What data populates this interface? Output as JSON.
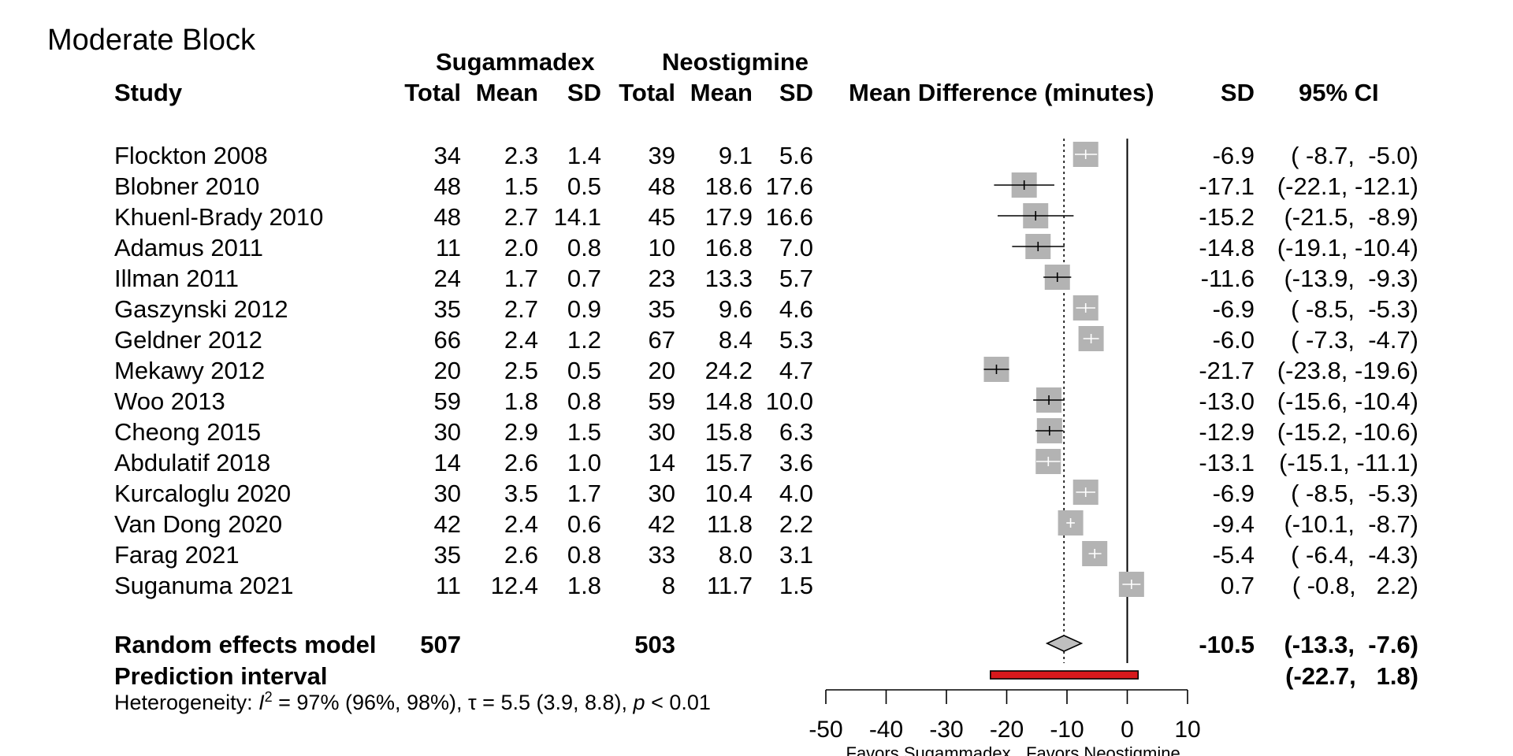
{
  "chart_data": {
    "type": "forest",
    "title": "Moderate Block",
    "group_headers": [
      "Sugammadex",
      "Neostigmine"
    ],
    "column_headers": [
      "Study",
      "Total",
      "Mean",
      "SD",
      "Total",
      "Mean",
      "SD",
      "Mean Difference (minutes)",
      "SD",
      "95% CI"
    ],
    "studies": [
      {
        "study": "Flockton 2008",
        "t1": "34",
        "m1": "2.3",
        "s1": "1.4",
        "t2": "39",
        "m2": "9.1",
        "s2": "5.6",
        "md_label": "-6.9",
        "ci_label": "( -8.7,  -5.0)",
        "md": -6.9,
        "lo": -8.7,
        "hi": -5.0
      },
      {
        "study": "Blobner 2010",
        "t1": "48",
        "m1": "1.5",
        "s1": "0.5",
        "t2": "48",
        "m2": "18.6",
        "s2": "17.6",
        "md_label": "-17.1",
        "ci_label": "(-22.1, -12.1)",
        "md": -17.1,
        "lo": -22.1,
        "hi": -12.1
      },
      {
        "study": "Khuenl-Brady 2010",
        "t1": "48",
        "m1": "2.7",
        "s1": "14.1",
        "t2": "45",
        "m2": "17.9",
        "s2": "16.6",
        "md_label": "-15.2",
        "ci_label": "(-21.5,  -8.9)",
        "md": -15.2,
        "lo": -21.5,
        "hi": -8.9
      },
      {
        "study": "Adamus 2011",
        "t1": "11",
        "m1": "2.0",
        "s1": "0.8",
        "t2": "10",
        "m2": "16.8",
        "s2": "7.0",
        "md_label": "-14.8",
        "ci_label": "(-19.1, -10.4)",
        "md": -14.8,
        "lo": -19.1,
        "hi": -10.4
      },
      {
        "study": "Illman 2011",
        "t1": "24",
        "m1": "1.7",
        "s1": "0.7",
        "t2": "23",
        "m2": "13.3",
        "s2": "5.7",
        "md_label": "-11.6",
        "ci_label": "(-13.9,  -9.3)",
        "md": -11.6,
        "lo": -13.9,
        "hi": -9.3
      },
      {
        "study": "Gaszynski 2012",
        "t1": "35",
        "m1": "2.7",
        "s1": "0.9",
        "t2": "35",
        "m2": "9.6",
        "s2": "4.6",
        "md_label": "-6.9",
        "ci_label": "( -8.5,  -5.3)",
        "md": -6.9,
        "lo": -8.5,
        "hi": -5.3
      },
      {
        "study": "Geldner 2012",
        "t1": "66",
        "m1": "2.4",
        "s1": "1.2",
        "t2": "67",
        "m2": "8.4",
        "s2": "5.3",
        "md_label": "-6.0",
        "ci_label": "( -7.3,  -4.7)",
        "md": -6.0,
        "lo": -7.3,
        "hi": -4.7
      },
      {
        "study": "Mekawy 2012",
        "t1": "20",
        "m1": "2.5",
        "s1": "0.5",
        "t2": "20",
        "m2": "24.2",
        "s2": "4.7",
        "md_label": "-21.7",
        "ci_label": "(-23.8, -19.6)",
        "md": -21.7,
        "lo": -23.8,
        "hi": -19.6
      },
      {
        "study": "Woo 2013",
        "t1": "59",
        "m1": "1.8",
        "s1": "0.8",
        "t2": "59",
        "m2": "14.8",
        "s2": "10.0",
        "md_label": "-13.0",
        "ci_label": "(-15.6, -10.4)",
        "md": -13.0,
        "lo": -15.6,
        "hi": -10.4
      },
      {
        "study": "Cheong 2015",
        "t1": "30",
        "m1": "2.9",
        "s1": "1.5",
        "t2": "30",
        "m2": "15.8",
        "s2": "6.3",
        "md_label": "-12.9",
        "ci_label": "(-15.2, -10.6)",
        "md": -12.9,
        "lo": -15.2,
        "hi": -10.6
      },
      {
        "study": "Abdulatif 2018",
        "t1": "14",
        "m1": "2.6",
        "s1": "1.0",
        "t2": "14",
        "m2": "15.7",
        "s2": "3.6",
        "md_label": "-13.1",
        "ci_label": "(-15.1, -11.1)",
        "md": -13.1,
        "lo": -15.1,
        "hi": -11.1
      },
      {
        "study": "Kurcaloglu 2020",
        "t1": "30",
        "m1": "3.5",
        "s1": "1.7",
        "t2": "30",
        "m2": "10.4",
        "s2": "4.0",
        "md_label": "-6.9",
        "ci_label": "( -8.5,  -5.3)",
        "md": -6.9,
        "lo": -8.5,
        "hi": -5.3
      },
      {
        "study": "Van Dong 2020",
        "t1": "42",
        "m1": "2.4",
        "s1": "0.6",
        "t2": "42",
        "m2": "11.8",
        "s2": "2.2",
        "md_label": "-9.4",
        "ci_label": "(-10.1,  -8.7)",
        "md": -9.4,
        "lo": -10.1,
        "hi": -8.7
      },
      {
        "study": "Farag 2021",
        "t1": "35",
        "m1": "2.6",
        "s1": "0.8",
        "t2": "33",
        "m2": "8.0",
        "s2": "3.1",
        "md_label": "-5.4",
        "ci_label": "( -6.4,  -4.3)",
        "md": -5.4,
        "lo": -6.4,
        "hi": -4.3
      },
      {
        "study": "Suganuma 2021",
        "t1": "11",
        "m1": "12.4",
        "s1": "1.8",
        "t2": "8",
        "m2": "11.7",
        "s2": "1.5",
        "md_label": "0.7",
        "ci_label": "( -0.8,   2.2)",
        "md": 0.7,
        "lo": -0.8,
        "hi": 2.2
      }
    ],
    "pooled": {
      "label": "Random effects model",
      "t1": "507",
      "t2": "503",
      "md_label": "-10.5",
      "ci_label": "(-13.3,  -7.6)",
      "md": -10.5,
      "lo": -13.3,
      "hi": -7.6
    },
    "prediction": {
      "label": "Prediction interval",
      "ci_label": "(-22.7,   1.8)",
      "lo": -22.7,
      "hi": 1.8
    },
    "heterogeneity": {
      "prefix": "Heterogeneity: ",
      "i": "I",
      "sup": "2",
      "i2_text": " = 97% (96%, 98%), τ = 5.5 (3.9, 8.8), ",
      "p": "p",
      "p_text": " < 0.01"
    },
    "xlim": [
      -50,
      10
    ],
    "x_ticks": [
      -50,
      -40,
      -30,
      -20,
      -10,
      0,
      10
    ],
    "x_tick_labels": [
      "-50",
      "-40",
      "-30",
      "-20",
      "-10",
      "0",
      "10"
    ],
    "axis_notes": [
      "Favors Sugammadex",
      "Favors Neostigmine"
    ],
    "colors": {
      "square": "#b3b3b3",
      "diamond": "#bfbfbf",
      "prediction": "#d7191c"
    }
  }
}
